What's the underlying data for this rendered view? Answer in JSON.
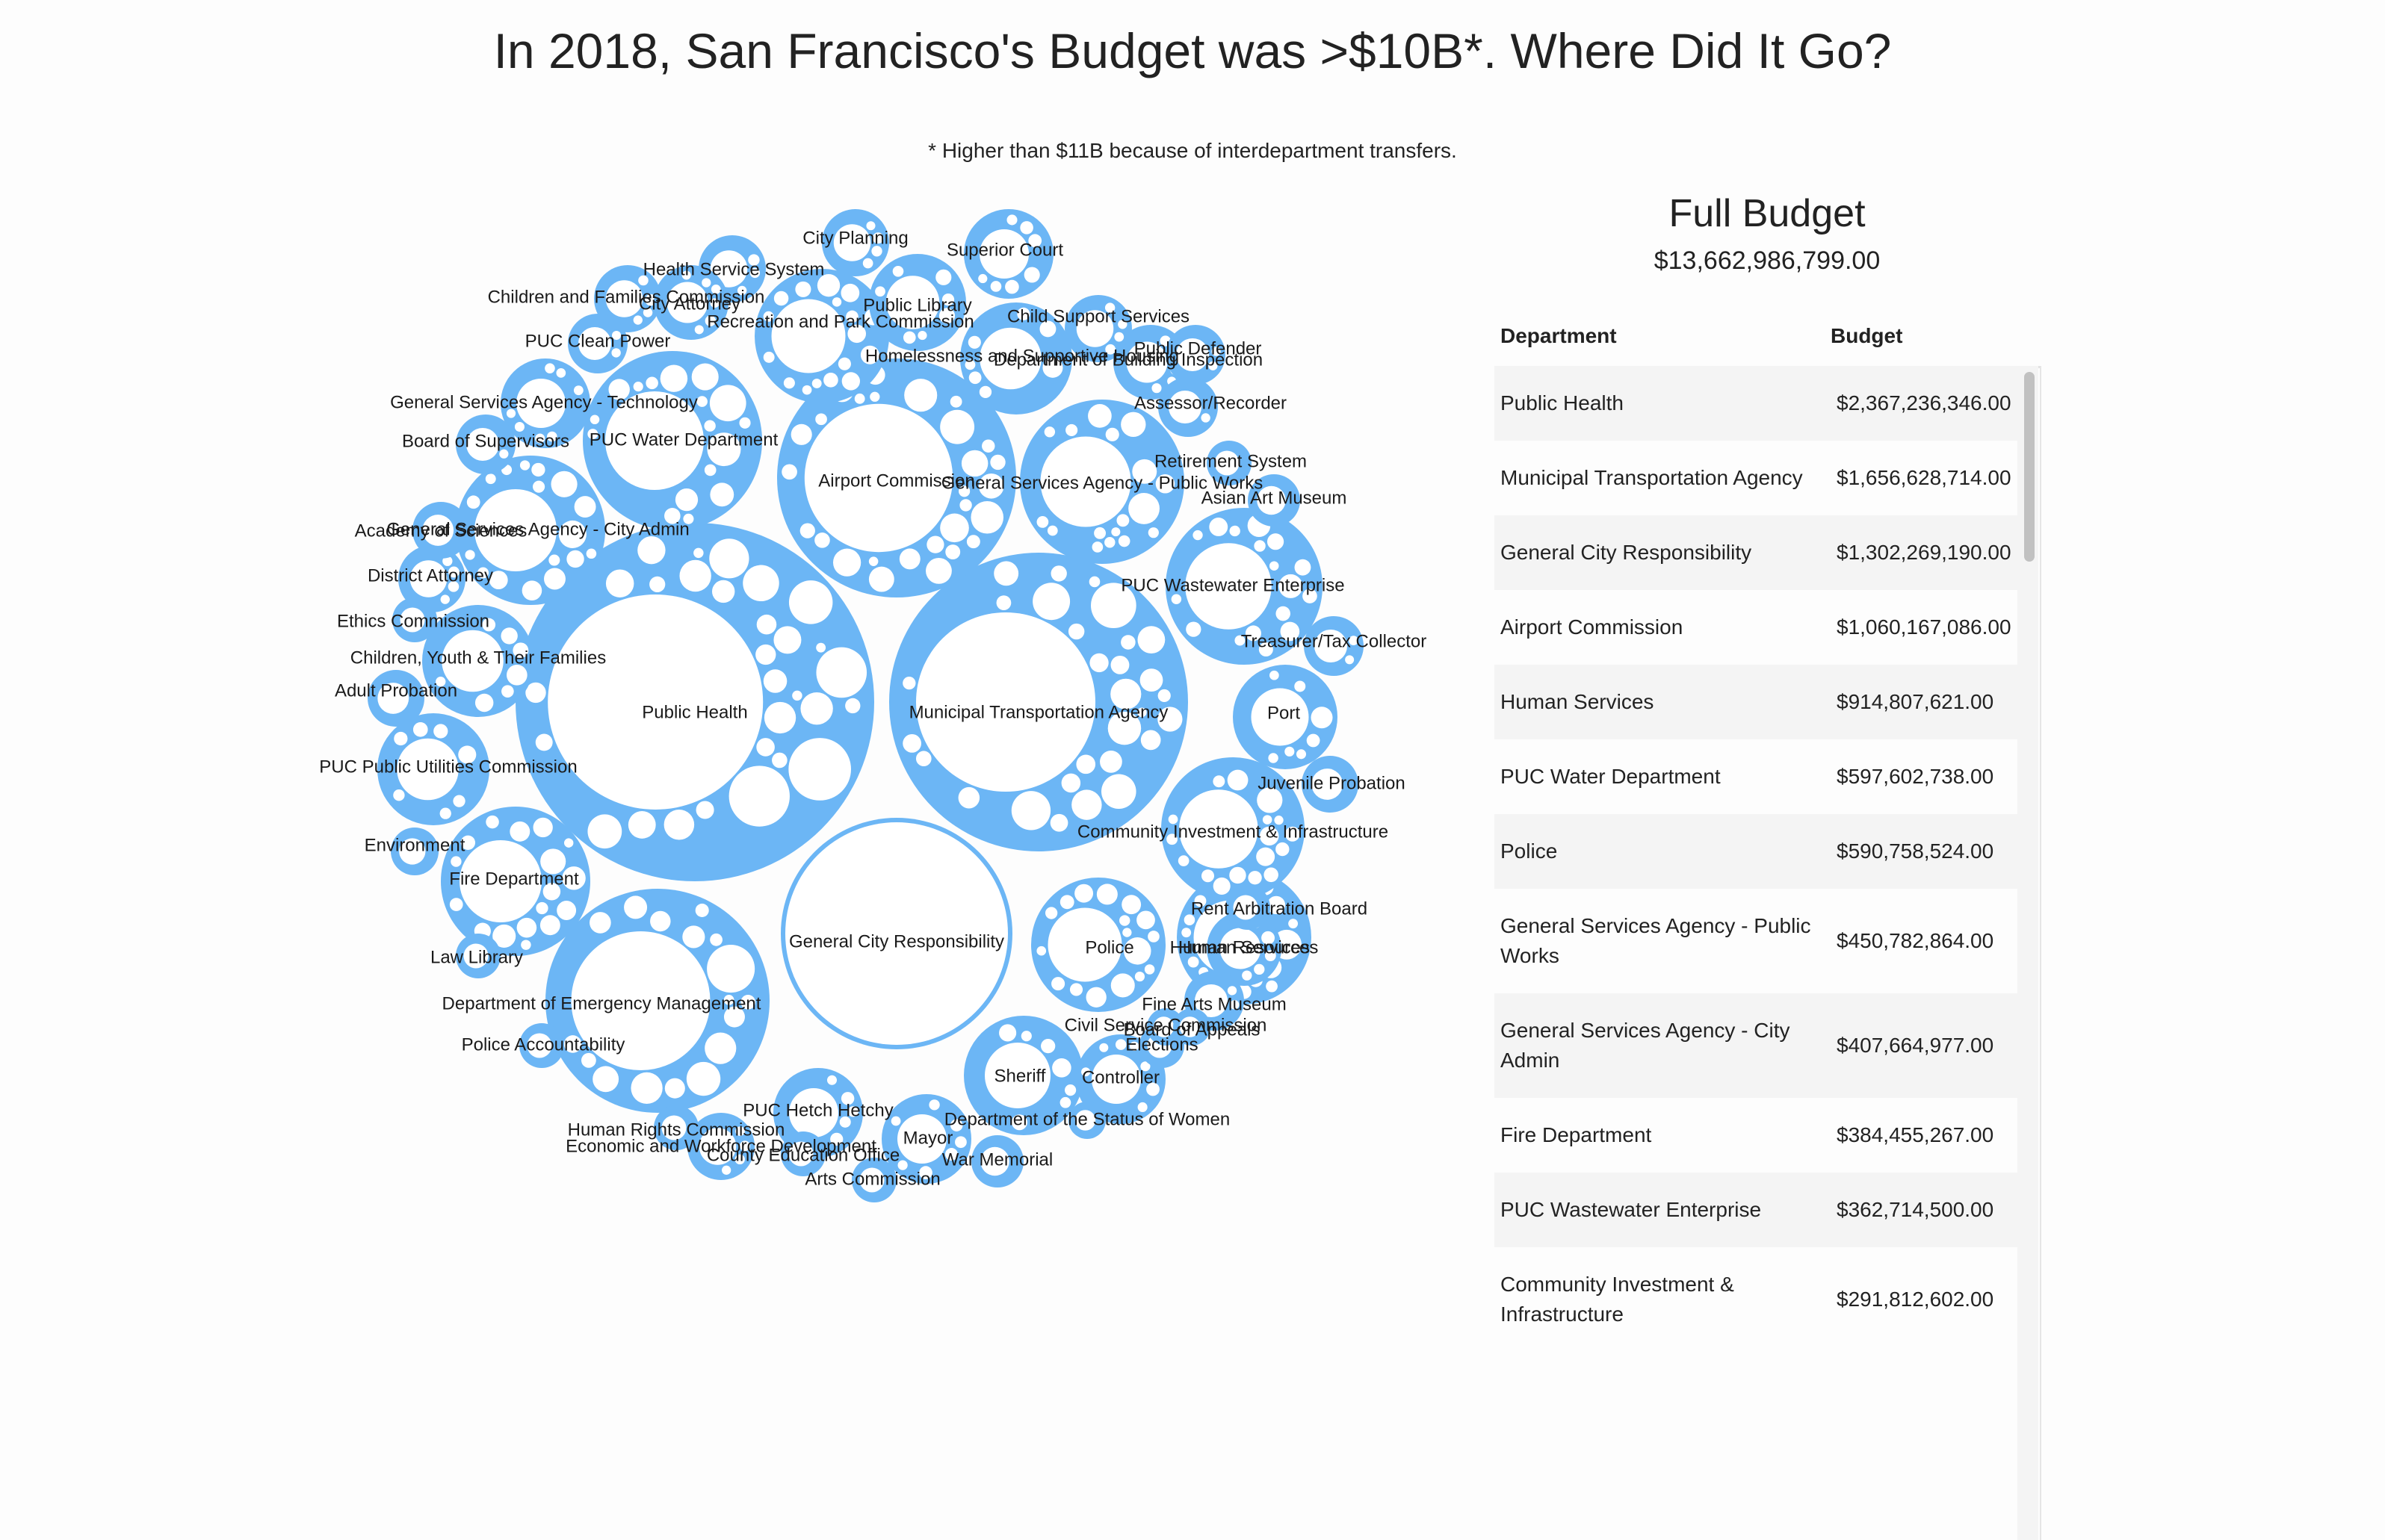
{
  "title": "In 2018, San Francisco's Budget was >$10B*. Where Did It Go?",
  "footnote": "* Higher than $11B because of interdepartment transfers.",
  "panel": {
    "title": "Full Budget",
    "total": "$13,662,986,799.00",
    "col_department": "Department",
    "col_budget": "Budget",
    "rows": [
      {
        "department": "Public Health",
        "budget": "$2,367,236,346.00"
      },
      {
        "department": "Municipal Transportation Agency",
        "budget": "$1,656,628,714.00"
      },
      {
        "department": "General City Responsibility",
        "budget": "$1,302,269,190.00"
      },
      {
        "department": "Airport Commission",
        "budget": "$1,060,167,086.00"
      },
      {
        "department": "Human Services",
        "budget": "$914,807,621.00"
      },
      {
        "department": "PUC Water Department",
        "budget": "$597,602,738.00"
      },
      {
        "department": "Police",
        "budget": "$590,758,524.00"
      },
      {
        "department": "General Services Agency - Public Works",
        "budget": "$450,782,864.00"
      },
      {
        "department": "General Services Agency - City Admin",
        "budget": "$407,664,977.00"
      },
      {
        "department": "Fire Department",
        "budget": "$384,455,267.00"
      },
      {
        "department": "PUC Wastewater Enterprise",
        "budget": "$362,714,500.00"
      },
      {
        "department": "Community Investment & Infrastructure",
        "budget": "$291,812,602.00"
      }
    ]
  },
  "chart_data": {
    "type": "bubble",
    "title": "In 2018, San Francisco's Budget was >$10B*. Where Did It Go?",
    "total": 13662986799,
    "colors": {
      "department": "#6cb6f5",
      "sub": "#ffffff",
      "stroke": "#6cb6f5"
    },
    "departments": [
      {
        "name": "Public Health",
        "value": 2367236346
      },
      {
        "name": "Municipal Transportation Agency",
        "value": 1656628714
      },
      {
        "name": "General City Responsibility",
        "value": 1302269190
      },
      {
        "name": "Airport Commission",
        "value": 1060167086
      },
      {
        "name": "Human Services",
        "value": 914807621
      },
      {
        "name": "PUC Water Department",
        "value": 597602738
      },
      {
        "name": "Police",
        "value": 590758524
      },
      {
        "name": "General Services Agency - Public Works",
        "value": 450782864
      },
      {
        "name": "General Services Agency - City Admin",
        "value": 407664977
      },
      {
        "name": "Fire Department",
        "value": 384455267
      },
      {
        "name": "PUC Wastewater Enterprise",
        "value": 362714500
      },
      {
        "name": "Community Investment & Infrastructure",
        "value": 291812602
      },
      {
        "name": "Department of Emergency Management",
        "value": null
      },
      {
        "name": "Recreation and Park Commission",
        "value": null
      },
      {
        "name": "Sheriff",
        "value": null
      },
      {
        "name": "PUC Public Utilities Commission",
        "value": null
      },
      {
        "name": "Homelessness and Supportive Housing",
        "value": null
      },
      {
        "name": "Port",
        "value": null
      },
      {
        "name": "Public Library",
        "value": null
      },
      {
        "name": "General Services Agency - Technology",
        "value": null
      },
      {
        "name": "Children, Youth & Their Families",
        "value": null
      },
      {
        "name": "Superior Court",
        "value": null
      },
      {
        "name": "Department of Building Inspection",
        "value": null
      },
      {
        "name": "District Attorney",
        "value": null
      },
      {
        "name": "Health Service System",
        "value": null
      },
      {
        "name": "Asian Art Museum",
        "value": null
      },
      {
        "name": "Juvenile Probation",
        "value": null
      },
      {
        "name": "PUC Hetch Hetchy",
        "value": null
      },
      {
        "name": "Controller",
        "value": null
      },
      {
        "name": "Human Resources",
        "value": null
      },
      {
        "name": "Child Support Services",
        "value": null
      },
      {
        "name": "Adult Probation",
        "value": null
      },
      {
        "name": "Children and Families Commission",
        "value": null
      },
      {
        "name": "Mayor",
        "value": null
      },
      {
        "name": "City Planning",
        "value": null
      },
      {
        "name": "Public Defender",
        "value": null
      },
      {
        "name": "City Attorney",
        "value": null
      },
      {
        "name": "Treasurer/Tax Collector",
        "value": null
      },
      {
        "name": "Economic and Workforce Development",
        "value": null
      },
      {
        "name": "Academy of Sciences",
        "value": null
      },
      {
        "name": "Assessor/Recorder",
        "value": null
      },
      {
        "name": "Board of Supervisors",
        "value": null
      },
      {
        "name": "PUC Clean Power",
        "value": null
      },
      {
        "name": "Environment",
        "value": null
      },
      {
        "name": "Elections",
        "value": null
      },
      {
        "name": "Retirement System",
        "value": null
      },
      {
        "name": "War Memorial",
        "value": null
      },
      {
        "name": "Fine Arts Museum",
        "value": null
      },
      {
        "name": "Arts Commission",
        "value": null
      },
      {
        "name": "Police Accountability",
        "value": null
      },
      {
        "name": "Human Rights Commission",
        "value": null
      },
      {
        "name": "Rent Arbitration Board",
        "value": null
      },
      {
        "name": "Law Library",
        "value": null
      },
      {
        "name": "County Education Office",
        "value": null
      },
      {
        "name": "Department of the Status of Women",
        "value": null
      },
      {
        "name": "Civil Service Commission",
        "value": null
      },
      {
        "name": "Board of Appeals",
        "value": null
      },
      {
        "name": "Ethics Commission",
        "value": null
      }
    ]
  }
}
